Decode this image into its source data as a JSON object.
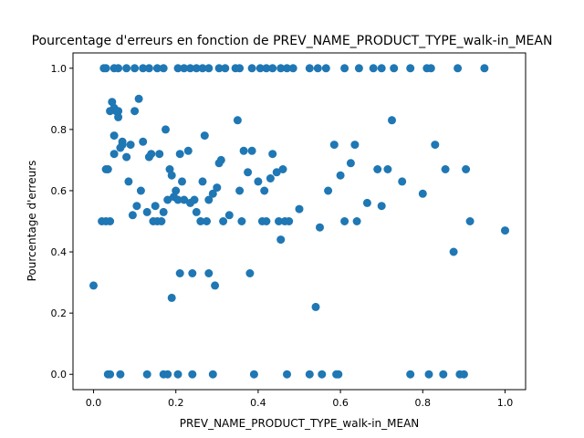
{
  "chart_data": {
    "type": "scatter",
    "title": "Pourcentage d'erreurs en fonction de PREV_NAME_PRODUCT_TYPE_walk-in_MEAN",
    "xlabel": "PREV_NAME_PRODUCT_TYPE_walk-in_MEAN",
    "ylabel": "Pourcentage d'erreurs",
    "xlim": [
      -0.05,
      1.05
    ],
    "ylim": [
      -0.05,
      1.05
    ],
    "xticks": [
      0.0,
      0.2,
      0.4,
      0.6,
      0.8,
      1.0
    ],
    "xtick_labels": [
      "0.0",
      "0.2",
      "0.4",
      "0.6",
      "0.8",
      "1.0"
    ],
    "yticks": [
      0.0,
      0.2,
      0.4,
      0.6,
      0.8,
      1.0
    ],
    "ytick_labels": [
      "0.0",
      "0.2",
      "0.4",
      "0.6",
      "0.8",
      "1.0"
    ],
    "grid": false,
    "legend": "none",
    "marker_color": "#1f77b4",
    "points": [
      [
        0.0,
        0.29
      ],
      [
        0.02,
        0.5
      ],
      [
        0.025,
        1.0
      ],
      [
        0.03,
        0.67
      ],
      [
        0.03,
        0.5
      ],
      [
        0.035,
        0.67
      ],
      [
        0.04,
        0.5
      ],
      [
        0.04,
        0.86
      ],
      [
        0.045,
        0.89
      ],
      [
        0.05,
        0.72
      ],
      [
        0.05,
        0.78
      ],
      [
        0.05,
        0.87
      ],
      [
        0.055,
        0.86
      ],
      [
        0.06,
        0.84
      ],
      [
        0.06,
        0.86
      ],
      [
        0.065,
        0.74
      ],
      [
        0.07,
        0.76
      ],
      [
        0.07,
        0.75
      ],
      [
        0.08,
        0.71
      ],
      [
        0.085,
        0.63
      ],
      [
        0.09,
        0.75
      ],
      [
        0.095,
        0.52
      ],
      [
        0.1,
        0.86
      ],
      [
        0.105,
        0.55
      ],
      [
        0.11,
        0.9
      ],
      [
        0.115,
        0.6
      ],
      [
        0.12,
        0.76
      ],
      [
        0.13,
        0.53
      ],
      [
        0.135,
        0.71
      ],
      [
        0.14,
        0.72
      ],
      [
        0.145,
        0.5
      ],
      [
        0.15,
        0.55
      ],
      [
        0.155,
        0.5
      ],
      [
        0.16,
        0.72
      ],
      [
        0.165,
        0.5
      ],
      [
        0.17,
        0.53
      ],
      [
        0.175,
        0.8
      ],
      [
        0.18,
        0.57
      ],
      [
        0.185,
        0.67
      ],
      [
        0.19,
        0.65
      ],
      [
        0.19,
        0.25
      ],
      [
        0.195,
        0.58
      ],
      [
        0.2,
        0.6
      ],
      [
        0.205,
        0.57
      ],
      [
        0.21,
        0.33
      ],
      [
        0.21,
        0.72
      ],
      [
        0.215,
        0.63
      ],
      [
        0.22,
        0.57
      ],
      [
        0.23,
        0.73
      ],
      [
        0.235,
        0.56
      ],
      [
        0.24,
        0.33
      ],
      [
        0.245,
        0.57
      ],
      [
        0.25,
        0.53
      ],
      [
        0.26,
        0.5
      ],
      [
        0.265,
        0.63
      ],
      [
        0.27,
        0.78
      ],
      [
        0.275,
        0.5
      ],
      [
        0.28,
        0.57
      ],
      [
        0.28,
        0.33
      ],
      [
        0.29,
        0.59
      ],
      [
        0.295,
        0.29
      ],
      [
        0.3,
        0.61
      ],
      [
        0.305,
        0.69
      ],
      [
        0.31,
        0.7
      ],
      [
        0.315,
        0.5
      ],
      [
        0.33,
        0.52
      ],
      [
        0.35,
        0.83
      ],
      [
        0.355,
        0.6
      ],
      [
        0.36,
        0.5
      ],
      [
        0.365,
        0.73
      ],
      [
        0.375,
        0.66
      ],
      [
        0.38,
        0.33
      ],
      [
        0.385,
        0.73
      ],
      [
        0.4,
        0.63
      ],
      [
        0.41,
        0.5
      ],
      [
        0.415,
        0.6
      ],
      [
        0.42,
        0.5
      ],
      [
        0.43,
        0.64
      ],
      [
        0.435,
        0.72
      ],
      [
        0.445,
        0.66
      ],
      [
        0.45,
        0.5
      ],
      [
        0.455,
        0.44
      ],
      [
        0.46,
        0.67
      ],
      [
        0.465,
        0.5
      ],
      [
        0.475,
        0.5
      ],
      [
        0.5,
        0.54
      ],
      [
        0.54,
        0.22
      ],
      [
        0.55,
        0.48
      ],
      [
        0.57,
        0.6
      ],
      [
        0.585,
        0.75
      ],
      [
        0.6,
        0.65
      ],
      [
        0.61,
        0.5
      ],
      [
        0.625,
        0.69
      ],
      [
        0.635,
        0.75
      ],
      [
        0.64,
        0.5
      ],
      [
        0.665,
        0.56
      ],
      [
        0.69,
        0.67
      ],
      [
        0.7,
        0.55
      ],
      [
        0.715,
        0.67
      ],
      [
        0.725,
        0.83
      ],
      [
        0.75,
        0.63
      ],
      [
        0.8,
        0.59
      ],
      [
        0.83,
        0.75
      ],
      [
        0.855,
        0.67
      ],
      [
        0.875,
        0.4
      ],
      [
        0.905,
        0.67
      ],
      [
        0.915,
        0.5
      ],
      [
        1.0,
        0.47
      ],
      [
        0.03,
        1.0
      ],
      [
        0.05,
        1.0
      ],
      [
        0.06,
        1.0
      ],
      [
        0.08,
        1.0
      ],
      [
        0.1,
        1.0
      ],
      [
        0.12,
        1.0
      ],
      [
        0.135,
        1.0
      ],
      [
        0.155,
        1.0
      ],
      [
        0.17,
        1.0
      ],
      [
        0.205,
        1.0
      ],
      [
        0.22,
        1.0
      ],
      [
        0.235,
        1.0
      ],
      [
        0.25,
        1.0
      ],
      [
        0.265,
        1.0
      ],
      [
        0.28,
        1.0
      ],
      [
        0.305,
        1.0
      ],
      [
        0.32,
        1.0
      ],
      [
        0.345,
        1.0
      ],
      [
        0.355,
        1.0
      ],
      [
        0.385,
        1.0
      ],
      [
        0.405,
        1.0
      ],
      [
        0.42,
        1.0
      ],
      [
        0.435,
        1.0
      ],
      [
        0.455,
        1.0
      ],
      [
        0.47,
        1.0
      ],
      [
        0.485,
        1.0
      ],
      [
        0.525,
        1.0
      ],
      [
        0.545,
        1.0
      ],
      [
        0.565,
        1.0
      ],
      [
        0.61,
        1.0
      ],
      [
        0.645,
        1.0
      ],
      [
        0.68,
        1.0
      ],
      [
        0.7,
        1.0
      ],
      [
        0.73,
        1.0
      ],
      [
        0.77,
        1.0
      ],
      [
        0.81,
        1.0
      ],
      [
        0.82,
        1.0
      ],
      [
        0.885,
        1.0
      ],
      [
        0.95,
        1.0
      ],
      [
        0.035,
        0.0
      ],
      [
        0.04,
        0.0
      ],
      [
        0.065,
        0.0
      ],
      [
        0.13,
        0.0
      ],
      [
        0.17,
        0.0
      ],
      [
        0.18,
        0.0
      ],
      [
        0.205,
        0.0
      ],
      [
        0.24,
        0.0
      ],
      [
        0.29,
        0.0
      ],
      [
        0.39,
        0.0
      ],
      [
        0.47,
        0.0
      ],
      [
        0.525,
        0.0
      ],
      [
        0.555,
        0.0
      ],
      [
        0.59,
        0.0
      ],
      [
        0.595,
        0.0
      ],
      [
        0.77,
        0.0
      ],
      [
        0.815,
        0.0
      ],
      [
        0.85,
        0.0
      ],
      [
        0.89,
        0.0
      ],
      [
        0.9,
        0.0
      ]
    ]
  }
}
